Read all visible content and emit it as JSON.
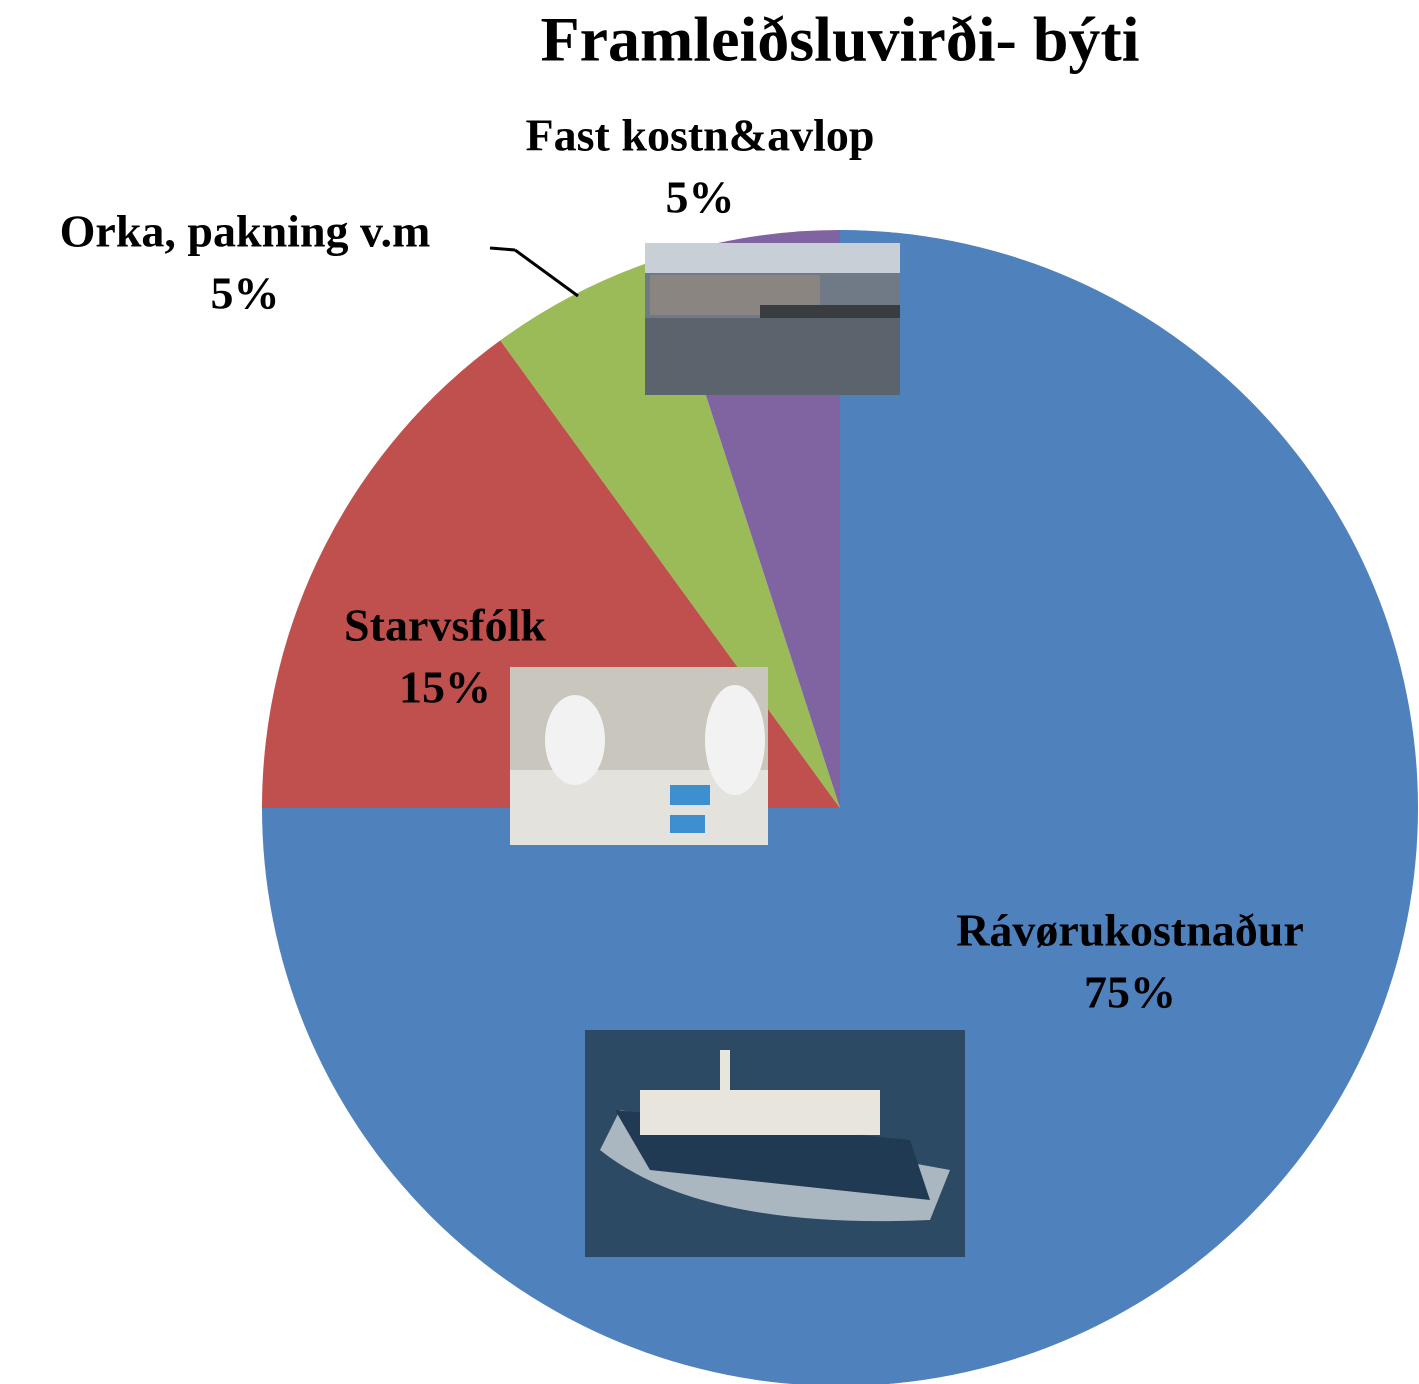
{
  "chart_data": {
    "type": "pie",
    "title": "Framleiðsluvirði- býti",
    "categories": [
      "Rávørukostnaður",
      "Starvsfólk",
      "Orka, pakning v.m",
      "Fast kostn&avlop"
    ],
    "values": [
      75,
      15,
      5,
      5
    ],
    "value_labels": [
      "75%",
      "15%",
      "5%",
      "5%"
    ],
    "colors": [
      "#4f81bd",
      "#c0504d",
      "#9bbb59",
      "#8064a2"
    ]
  }
}
